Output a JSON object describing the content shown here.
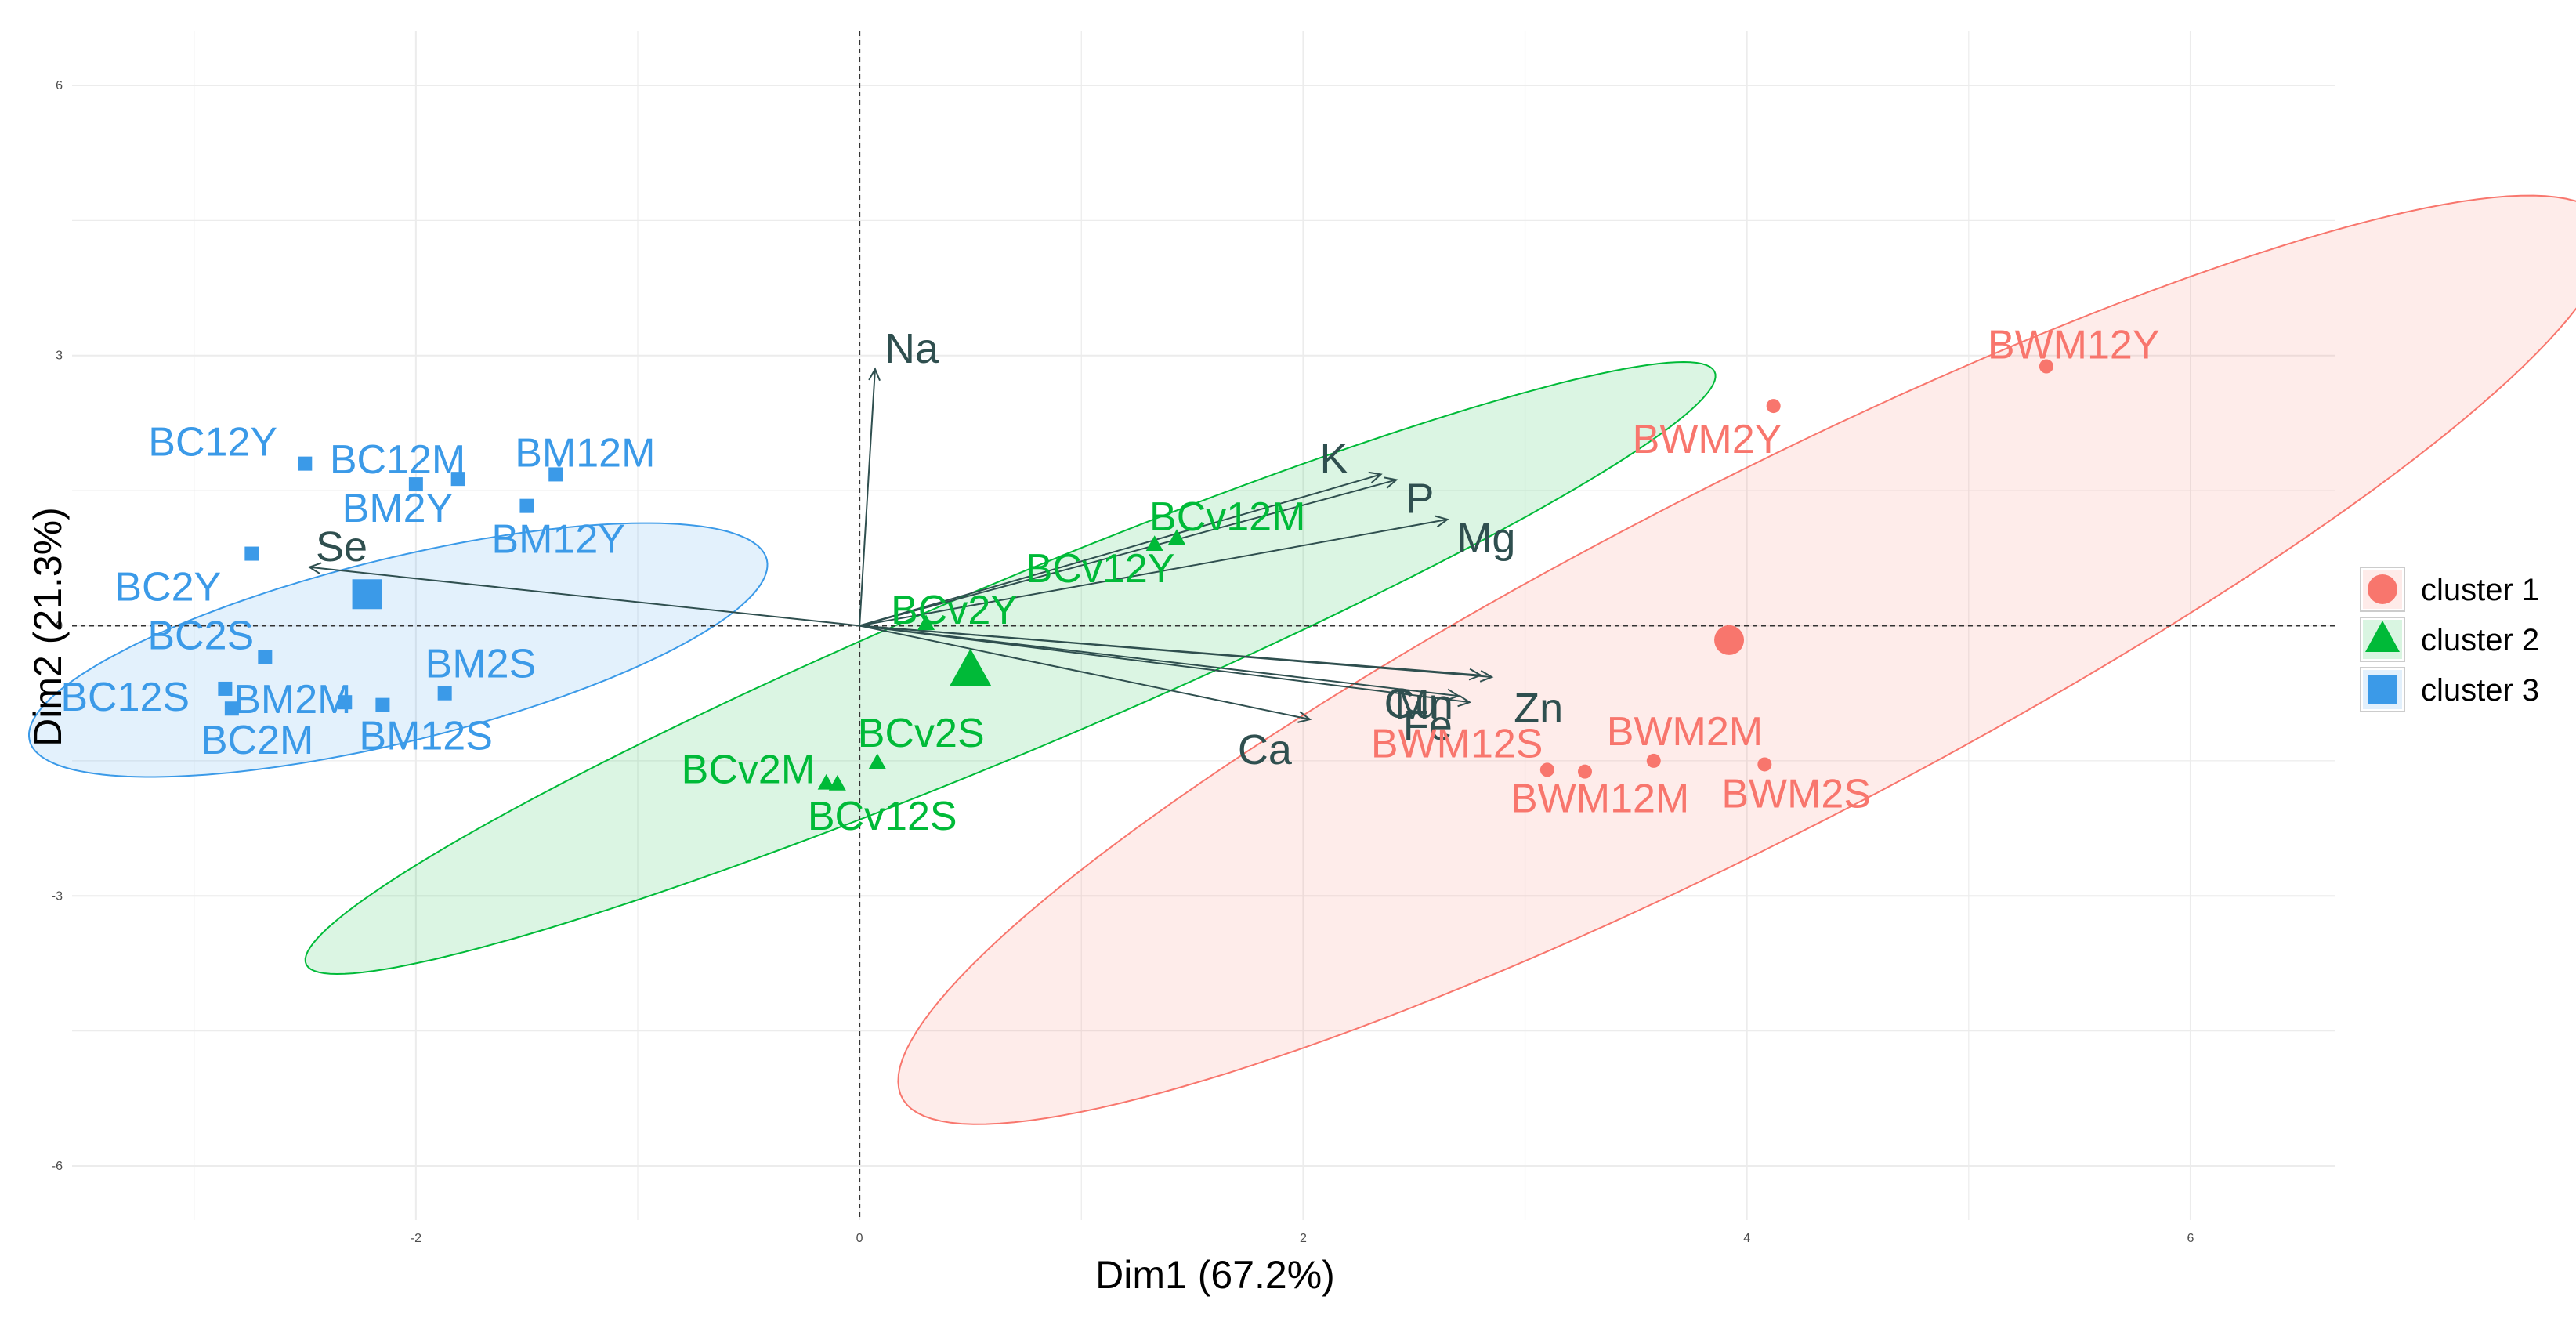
{
  "chart_data": {
    "type": "scatter",
    "title": "",
    "xlabel": "Dim1 (67.2%)",
    "ylabel": "Dim2 (21.3%)",
    "xlim": [
      -3.55,
      6.65
    ],
    "ylim": [
      -6.6,
      6.6
    ],
    "xticks": [
      -2,
      0,
      2,
      4,
      6
    ],
    "yticks": [
      -6,
      -3,
      0,
      3,
      6
    ],
    "xtick_labels": [
      "-2",
      "0",
      "2",
      "4",
      "6"
    ],
    "ytick_labels": [
      "-6",
      "-3",
      "0",
      "3",
      "6"
    ],
    "grid": true,
    "legend_position": "right",
    "colors": {
      "cluster 1": "#f8766d",
      "cluster 2": "#00ba38",
      "cluster 3": "#3b9ae8",
      "variables": "#2f4f4f",
      "grid": "#ececec"
    },
    "series": [
      {
        "name": "cluster 1",
        "color": "#f8766d",
        "marker": "circle",
        "centroid": [
          3.92,
          -0.16
        ],
        "ellipse": {
          "center": [
            4.03,
            -0.38
          ],
          "rx": 6.3,
          "ry": 1.33,
          "angle_deg": 54
        },
        "points": [
          {
            "label": "BWM12Y",
            "x": 5.35,
            "y": 2.88
          },
          {
            "label": "BWM2Y",
            "x": 4.12,
            "y": 2.44
          },
          {
            "label": "BWM12S",
            "x": 3.1,
            "y": -1.6
          },
          {
            "label": "BWM12M",
            "x": 3.27,
            "y": -1.62
          },
          {
            "label": "BWM2M",
            "x": 3.58,
            "y": -1.5
          },
          {
            "label": "BWM2S",
            "x": 4.08,
            "y": -1.54
          }
        ]
      },
      {
        "name": "cluster 2",
        "color": "#00ba38",
        "marker": "triangle",
        "centroid": [
          0.5,
          -0.5
        ],
        "ellipse": {
          "center": [
            0.68,
            -0.47
          ],
          "rx": 4.6,
          "ry": 0.7,
          "angle_deg": 47
        },
        "points": [
          {
            "label": "BCv12M",
            "x": 1.43,
            "y": 0.97
          },
          {
            "label": "BCv12Y",
            "x": 1.33,
            "y": 0.9
          },
          {
            "label": "BCv2Y",
            "x": 0.3,
            "y": 0.02
          },
          {
            "label": "BCv2M",
            "x": -0.15,
            "y": -1.75
          },
          {
            "label": "BCv2S",
            "x": 0.08,
            "y": -1.52
          },
          {
            "label": "BCv12S",
            "x": -0.1,
            "y": -1.76
          }
        ]
      },
      {
        "name": "cluster 3",
        "color": "#3b9ae8",
        "marker": "square",
        "centroid": [
          -2.22,
          0.35
        ],
        "ellipse": {
          "center": [
            -2.08,
            -0.27
          ],
          "rx": 2.0,
          "ry": 0.87,
          "angle_deg": 38
        },
        "points": [
          {
            "label": "BC12Y",
            "x": -2.5,
            "y": 1.8
          },
          {
            "label": "BC12M",
            "x": -2.0,
            "y": 1.57
          },
          {
            "label": "BM12M",
            "x": -1.37,
            "y": 1.68
          },
          {
            "label": "BM2Y",
            "x": -1.81,
            "y": 1.63
          },
          {
            "label": "BM12Y",
            "x": -1.5,
            "y": 1.33
          },
          {
            "label": "BC2Y",
            "x": -2.74,
            "y": 0.8
          },
          {
            "label": "BC2S",
            "x": -2.68,
            "y": -0.35
          },
          {
            "label": "BC12S",
            "x": -2.86,
            "y": -0.7
          },
          {
            "label": "BM2M",
            "x": -2.32,
            "y": -0.85
          },
          {
            "label": "BC2M",
            "x": -2.83,
            "y": -0.92
          },
          {
            "label": "BM12S",
            "x": -2.15,
            "y": -0.88
          },
          {
            "label": "BM2S",
            "x": -1.87,
            "y": -0.75
          }
        ]
      }
    ],
    "variables": [
      {
        "label": "Na",
        "x": 0.07,
        "y": 2.85
      },
      {
        "label": "K",
        "x": 2.35,
        "y": 1.68
      },
      {
        "label": "P",
        "x": 2.42,
        "y": 1.62
      },
      {
        "label": "Mg",
        "x": 2.65,
        "y": 1.18
      },
      {
        "label": "Se",
        "x": -2.48,
        "y": 0.65
      },
      {
        "label": "Mn",
        "x": 2.8,
        "y": -0.55
      },
      {
        "label": "Zn",
        "x": 2.85,
        "y": -0.57
      },
      {
        "label": "Cu",
        "x": 2.7,
        "y": -0.78
      },
      {
        "label": "Fe",
        "x": 2.75,
        "y": -0.85
      },
      {
        "label": "Ca",
        "x": 2.03,
        "y": -1.04
      }
    ]
  }
}
